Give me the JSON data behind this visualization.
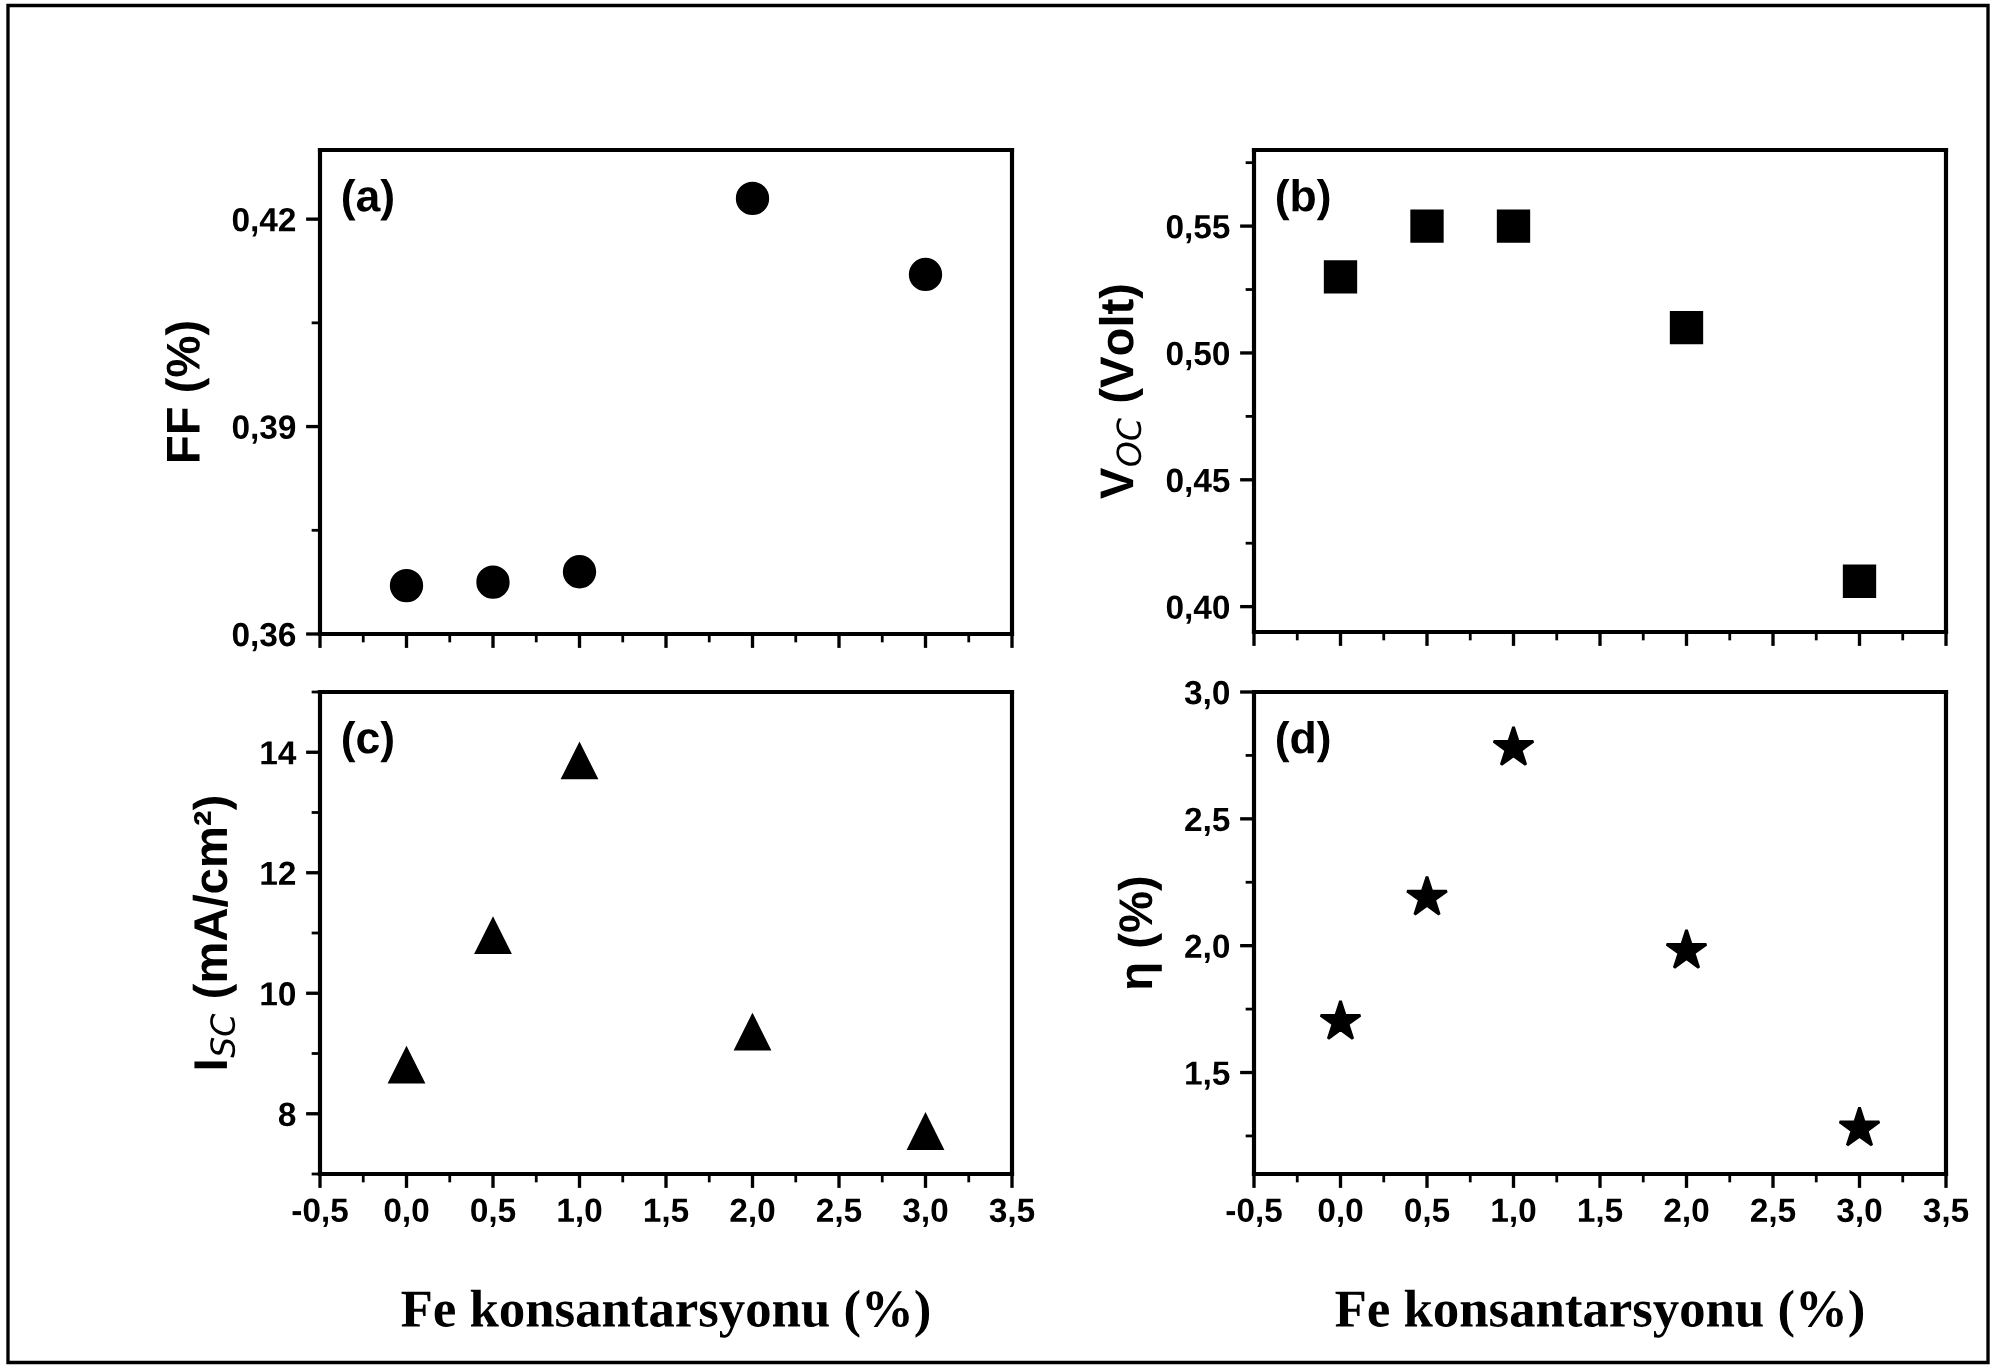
{
  "chart_data": [
    {
      "type": "scatter",
      "ylabel": "FF (%)",
      "annotations": [
        "(a)"
      ],
      "marker": "circle",
      "tick_labels": "y",
      "x": [
        0.0,
        0.5,
        1.0,
        2.0,
        3.0
      ],
      "xlim": [
        -0.5,
        3.5
      ],
      "xticks": [
        {
          "value": -0.5,
          "label": null
        },
        {
          "value": 0.0,
          "label": null
        },
        {
          "value": 0.5,
          "label": null
        },
        {
          "value": 1.0,
          "label": null
        },
        {
          "value": 1.5,
          "label": null
        },
        {
          "value": 2.0,
          "label": null
        },
        {
          "value": 2.5,
          "label": null
        },
        {
          "value": 3.0,
          "label": null
        },
        {
          "value": 3.5,
          "label": null
        }
      ],
      "ylim": [
        0.36,
        0.43
      ],
      "yticks": [
        {
          "value": 0.36,
          "label": "0,36"
        },
        {
          "value": 0.39,
          "label": "0,39"
        },
        {
          "value": 0.42,
          "label": "0,42"
        }
      ],
      "series": [
        {
          "color": "#000000",
          "values": [
            0.367,
            0.3675,
            0.369,
            0.423,
            0.412
          ]
        }
      ]
    },
    {
      "type": "scatter",
      "ylabel": "V$_{OC}$ (Volt)",
      "annotations": [
        "(b)"
      ],
      "marker": "square",
      "tick_labels": "y",
      "x": [
        0.0,
        0.5,
        1.0,
        2.0,
        3.0
      ],
      "xlim": [
        -0.5,
        3.5
      ],
      "xticks": [
        {
          "value": -0.5,
          "label": null
        },
        {
          "value": 0.0,
          "label": null
        },
        {
          "value": 0.5,
          "label": null
        },
        {
          "value": 1.0,
          "label": null
        },
        {
          "value": 1.5,
          "label": null
        },
        {
          "value": 2.0,
          "label": null
        },
        {
          "value": 2.5,
          "label": null
        },
        {
          "value": 3.0,
          "label": null
        },
        {
          "value": 3.5,
          "label": null
        }
      ],
      "ylim": [
        0.39,
        0.58
      ],
      "yticks": [
        {
          "value": 0.4,
          "label": "0,40"
        },
        {
          "value": 0.45,
          "label": "0,45"
        },
        {
          "value": 0.5,
          "label": "0,50"
        },
        {
          "value": 0.55,
          "label": "0,55"
        }
      ],
      "series": [
        {
          "color": "#000000",
          "values": [
            0.53,
            0.55,
            0.55,
            0.51,
            0.41
          ]
        }
      ]
    },
    {
      "type": "scatter",
      "xlabel": "Fe konsantarsyonu (%)",
      "ylabel": "I$_{SC}$ (mA/cm²)",
      "annotations": [
        "(c)"
      ],
      "marker": "triangle",
      "x": [
        0.0,
        0.5,
        1.0,
        2.0,
        3.0
      ],
      "xlim": [
        -0.5,
        3.5
      ],
      "xticks": [
        {
          "value": -0.5,
          "label": "-0,5"
        },
        {
          "value": 0.0,
          "label": "0,0"
        },
        {
          "value": 0.5,
          "label": "0,5"
        },
        {
          "value": 1.0,
          "label": "1,0"
        },
        {
          "value": 1.5,
          "label": "1,5"
        },
        {
          "value": 2.0,
          "label": "2,0"
        },
        {
          "value": 2.5,
          "label": "2,5"
        },
        {
          "value": 3.0,
          "label": "3,0"
        },
        {
          "value": 3.5,
          "label": "3,5"
        }
      ],
      "ylim": [
        7,
        15
      ],
      "yticks": [
        8,
        10,
        12,
        14
      ],
      "series": [
        {
          "color": "#000000",
          "values": [
            8.8,
            10.95,
            13.85,
            9.35,
            7.7
          ]
        }
      ]
    },
    {
      "type": "scatter",
      "xlabel": "Fe konsantarsyonu (%)",
      "ylabel": "η (%)",
      "annotations": [
        "(d)"
      ],
      "marker": "star",
      "x": [
        0.0,
        0.5,
        1.0,
        2.0,
        3.0
      ],
      "xlim": [
        -0.5,
        3.5
      ],
      "xticks": [
        {
          "value": -0.5,
          "label": "-0,5"
        },
        {
          "value": 0.0,
          "label": "0,0"
        },
        {
          "value": 0.5,
          "label": "0,5"
        },
        {
          "value": 1.0,
          "label": "1,0"
        },
        {
          "value": 1.5,
          "label": "1,5"
        },
        {
          "value": 2.0,
          "label": "2,0"
        },
        {
          "value": 2.5,
          "label": "2,5"
        },
        {
          "value": 3.0,
          "label": "3,0"
        },
        {
          "value": 3.5,
          "label": "3,5"
        }
      ],
      "ylim": [
        1.1,
        3.0
      ],
      "yticks": [
        {
          "value": 1.5,
          "label": "1,5"
        },
        {
          "value": 2.0,
          "label": "2,0"
        },
        {
          "value": 2.5,
          "label": "2,5"
        },
        {
          "value": 3.0,
          "label": "3,0"
        }
      ],
      "series": [
        {
          "color": "#000000",
          "values": [
            1.7,
            2.19,
            2.78,
            1.98,
            1.28
          ]
        }
      ]
    }
  ]
}
